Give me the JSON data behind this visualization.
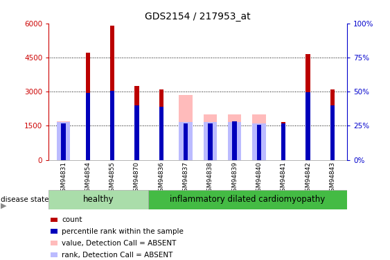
{
  "title": "GDS2154 / 217953_at",
  "samples": [
    "GSM94831",
    "GSM94854",
    "GSM94855",
    "GSM94870",
    "GSM94836",
    "GSM94837",
    "GSM94838",
    "GSM94839",
    "GSM94840",
    "GSM94841",
    "GSM94842",
    "GSM94843"
  ],
  "healthy_count": 4,
  "ylim_left": [
    0,
    6000
  ],
  "ylim_right": [
    0,
    100
  ],
  "yticks_left": [
    0,
    1500,
    3000,
    4500,
    6000
  ],
  "yticks_right": [
    0,
    25,
    50,
    75,
    100
  ],
  "count_values": [
    0,
    4700,
    5900,
    3250,
    3100,
    0,
    0,
    0,
    0,
    1650,
    4650,
    3100
  ],
  "percentile_values": [
    1600,
    2950,
    3040,
    2400,
    2350,
    1600,
    1600,
    1700,
    1550,
    1600,
    2980,
    2400
  ],
  "absent_value_values": [
    1700,
    0,
    0,
    0,
    0,
    2850,
    2000,
    2000,
    2000,
    0,
    0,
    0
  ],
  "absent_rank_values": [
    1650,
    0,
    0,
    0,
    0,
    1650,
    1650,
    1650,
    1600,
    0,
    0,
    0
  ],
  "wide_bar_width": 0.55,
  "narrow_bar_width": 0.18,
  "count_color": "#bb0000",
  "percentile_color": "#0000bb",
  "absent_value_color": "#ffbbbb",
  "absent_rank_color": "#bbbbff",
  "healthy_bg": "#aaddaa",
  "idc_bg": "#44bb44",
  "xtick_bg": "#cccccc",
  "label_color_left": "#cc0000",
  "label_color_right": "#0000cc"
}
